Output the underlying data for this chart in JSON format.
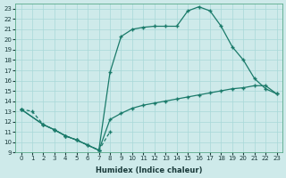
{
  "xlabel": "Humidex (Indice chaleur)",
  "bg_color": "#ceeaea",
  "grid_color": "#a8d8d8",
  "line_color": "#1a7a6a",
  "xlim": [
    -0.5,
    23.5
  ],
  "ylim": [
    9,
    23.5
  ],
  "xticks": [
    0,
    1,
    2,
    3,
    4,
    5,
    6,
    7,
    8,
    9,
    10,
    11,
    12,
    13,
    14,
    15,
    16,
    17,
    18,
    19,
    20,
    21,
    22,
    23
  ],
  "yticks": [
    9,
    10,
    11,
    12,
    13,
    14,
    15,
    16,
    17,
    18,
    19,
    20,
    21,
    22,
    23
  ],
  "line_dashed": {
    "x": [
      0,
      1,
      2,
      3,
      4,
      5,
      6,
      7,
      8
    ],
    "y": [
      13.2,
      13.0,
      11.7,
      11.2,
      10.6,
      10.2,
      9.7,
      9.2,
      11.0
    ]
  },
  "line_lower": {
    "x": [
      0,
      2,
      3,
      4,
      5,
      6,
      7,
      8,
      9,
      10,
      11,
      12,
      13,
      14,
      15,
      16,
      17,
      18,
      19,
      20,
      21,
      22,
      23
    ],
    "y": [
      13.2,
      11.7,
      11.2,
      10.6,
      10.2,
      9.7,
      9.2,
      12.2,
      12.8,
      13.3,
      13.6,
      13.8,
      14.0,
      14.2,
      14.4,
      14.6,
      14.8,
      15.0,
      15.2,
      15.3,
      15.5,
      15.5,
      14.7
    ]
  },
  "line_upper": {
    "x": [
      0,
      2,
      3,
      4,
      5,
      7,
      8,
      9,
      10,
      11,
      12,
      13,
      14,
      15,
      16,
      17,
      18,
      19,
      20,
      21,
      22,
      23
    ],
    "y": [
      13.2,
      11.7,
      11.2,
      10.6,
      10.2,
      9.2,
      16.8,
      20.3,
      21.0,
      21.2,
      21.3,
      21.3,
      21.3,
      22.8,
      23.2,
      22.8,
      21.3,
      19.3,
      18.0,
      16.2,
      15.2,
      14.7
    ]
  }
}
